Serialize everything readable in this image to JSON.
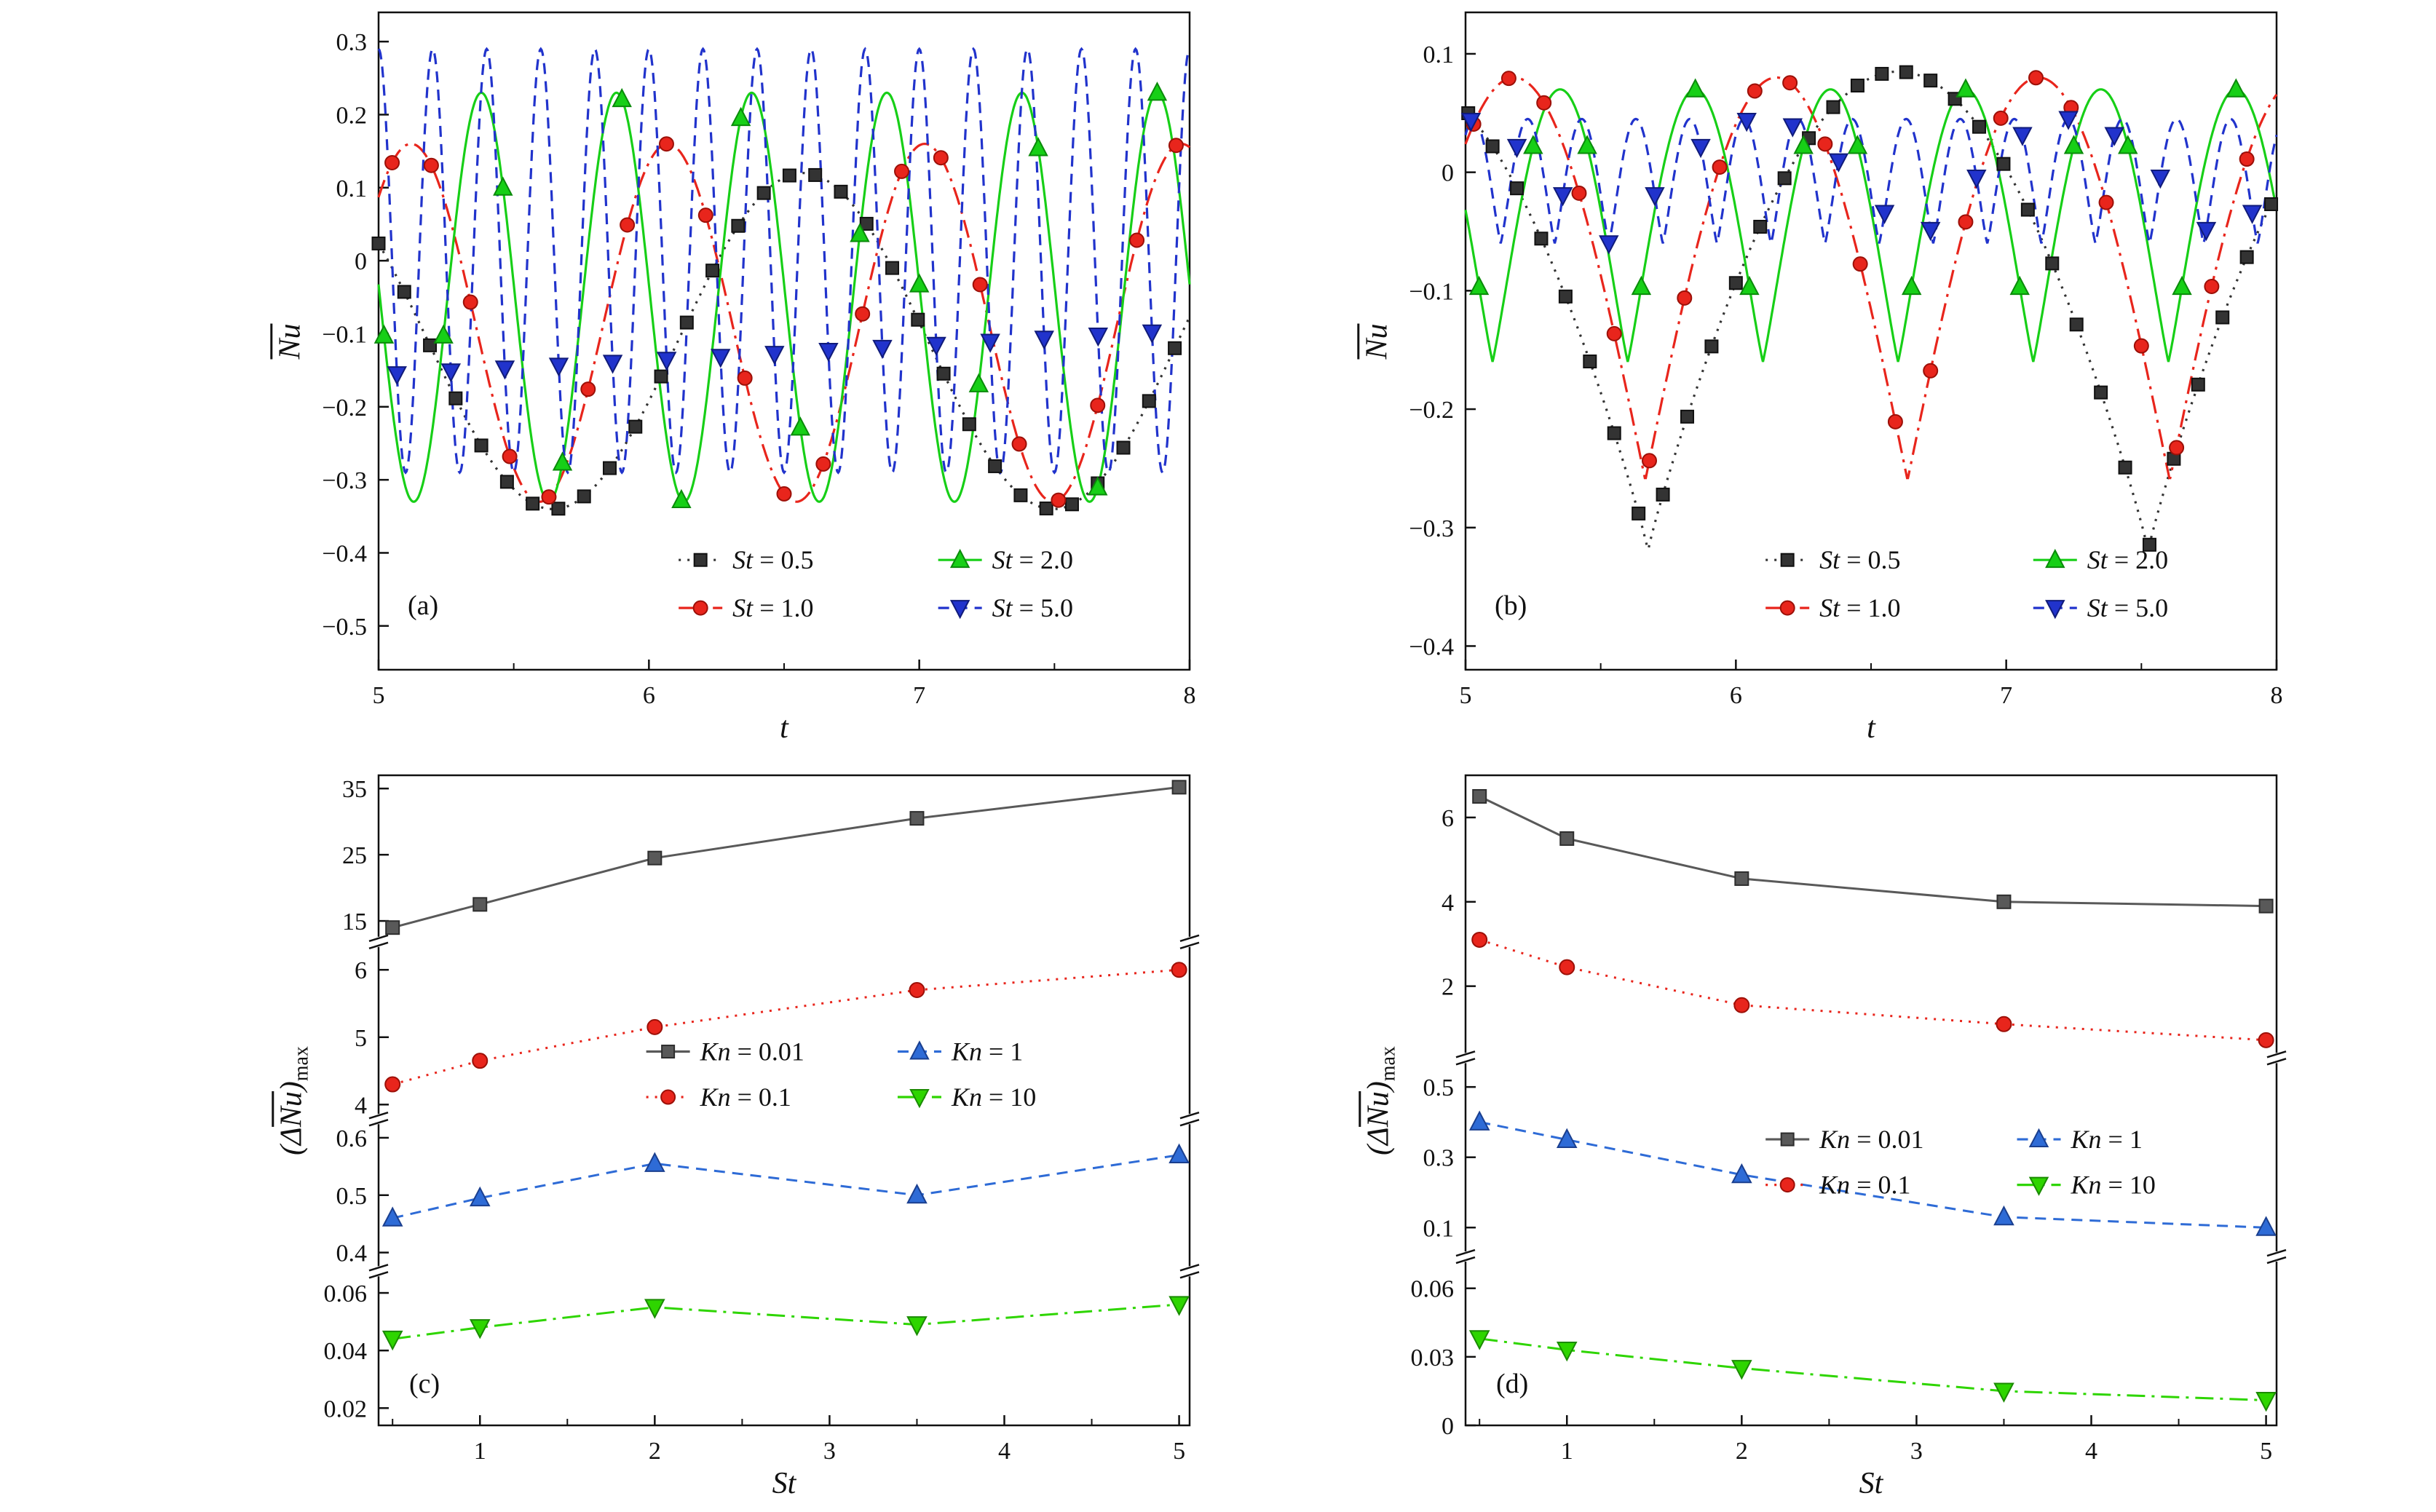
{
  "chart_data": {
    "type": "line",
    "description": "Four-panel figure of averaged Nusselt number oscillations and their maximum amplitude",
    "panels": {
      "a": {
        "type": "line",
        "letter": "(a)",
        "xlabel": "t",
        "ylabel": {
          "pre": "",
          "bar": "Nu",
          "post": "",
          "sub": ""
        },
        "xlim": [
          5,
          8
        ],
        "xticks": [
          5,
          6,
          7,
          8
        ],
        "xdec": 0,
        "ylim": [
          -0.56,
          0.34
        ],
        "yticks": [
          0.3,
          0.2,
          0.1,
          0,
          -0.1,
          -0.2,
          -0.3,
          -0.4,
          -0.5
        ],
        "ydec": 1,
        "series": [
          {
            "name": "St = 0.5",
            "color": "#333333",
            "edge": "#111111",
            "line": "dotted",
            "marker": "square",
            "center": -0.11,
            "amp": 0.23,
            "period": 1.85,
            "tmax": 4.72,
            "shape": 1,
            "marker_dt": 0.095,
            "marker_t0": 0.0
          },
          {
            "name": "St = 1.0",
            "color": "#e8251c",
            "edge": "#9c1008",
            "line": "dashdot",
            "marker": "circle",
            "center": -0.085,
            "amp": 0.245,
            "period": 0.95,
            "tmax": 5.12,
            "shape": 1,
            "marker_dt": 0.145,
            "marker_t0": 0.05
          },
          {
            "name": "St = 2.0",
            "color": "#17cf17",
            "edge": "#0a8a0a",
            "line": "solid",
            "marker": "triangle-up",
            "center": -0.05,
            "amp": 0.28,
            "period": 0.5,
            "tmax": 5.38,
            "shape": 1,
            "marker_dt": 0.22,
            "marker_t0": 0.02
          },
          {
            "name": "St = 5.0",
            "color": "#2133cc",
            "edge": "#101b7a",
            "line": "dashed",
            "marker": "triangle-down",
            "center": 0.0,
            "amp": 0.29,
            "period": 0.2,
            "tmax": 5.0,
            "shape": 1,
            "marker_dt": 0.1995,
            "marker_t0": 0.068
          }
        ]
      },
      "b": {
        "type": "line",
        "letter": "(b)",
        "xlabel": "t",
        "ylabel": {
          "pre": "",
          "bar": "Nu",
          "post": "",
          "sub": ""
        },
        "xlim": [
          5,
          8
        ],
        "xticks": [
          5,
          6,
          7,
          8
        ],
        "xdec": 0,
        "ylim": [
          -0.42,
          0.135
        ],
        "yticks": [
          0.1,
          0,
          -0.1,
          -0.2,
          -0.3,
          -0.4
        ],
        "ydec": 1,
        "series": [
          {
            "name": "St = 0.5",
            "color": "#333333",
            "edge": "#111111",
            "line": "dotted",
            "marker": "square",
            "center": -0.1175,
            "amp": 0.2025,
            "period": 1.85,
            "tmax": 6.6,
            "shape": 0.45,
            "marker_dt": 0.09,
            "marker_t0": 0.01
          },
          {
            "name": "St = 1.0",
            "color": "#e8251c",
            "edge": "#9c1008",
            "line": "dashdot",
            "marker": "circle",
            "center": -0.09,
            "amp": 0.17,
            "period": 0.97,
            "tmax": 6.15,
            "shape": 0.5,
            "marker_dt": 0.13,
            "marker_t0": 0.03
          },
          {
            "name": "St = 2.0",
            "color": "#17cf17",
            "edge": "#0a8a0a",
            "line": "solid",
            "marker": "triangle-up",
            "center": -0.045,
            "amp": 0.115,
            "period": 0.5,
            "tmax": 5.35,
            "shape": 0.55,
            "marker_dt": 0.2,
            "marker_t0": 0.05
          },
          {
            "name": "St = 5.0",
            "color": "#2133cc",
            "edge": "#101b7a",
            "line": "dashed",
            "marker": "triangle-down",
            "center": -0.0075,
            "amp": 0.0525,
            "period": 0.2,
            "tmax": 5.03,
            "shape": 0.6,
            "marker_dt": 0.17,
            "marker_t0": 0.02
          }
        ]
      },
      "c": {
        "type": "line-broken-axis",
        "letter": "(c)",
        "xlabel": "St",
        "ylabel": {
          "pre": "(Δ",
          "bar": "Nu",
          "post": ")",
          "sub": "max"
        },
        "xlim": [
          0.42,
          5.06
        ],
        "xticks": [
          1,
          2,
          3,
          4,
          5
        ],
        "xdec": 0,
        "x": [
          0.5,
          1,
          2,
          3.5,
          5
        ],
        "segments": [
          {
            "range": [
              12.5,
              37
            ],
            "ticks": [
              15,
              25,
              35
            ],
            "dec": 0,
            "frac": 0.26
          },
          {
            "range": [
              3.85,
              6.35
            ],
            "ticks": [
              4,
              5,
              6
            ],
            "dec": 0,
            "frac": 0.27
          },
          {
            "range": [
              0.375,
              0.625
            ],
            "ticks": [
              0.4,
              0.5,
              0.6
            ],
            "dec": 1,
            "frac": 0.23
          },
          {
            "range": [
              0.014,
              0.066
            ],
            "ticks": [
              0.02,
              0.04,
              0.06
            ],
            "dec": 2,
            "frac": 0.24
          }
        ],
        "series": [
          {
            "name": "Kn = 0.01",
            "color": "#595959",
            "edge": "#2e2e2e",
            "line": "solid",
            "marker": "square",
            "segment": 0,
            "y": [
              14,
              17.5,
              24.5,
              30.5,
              35.2
            ]
          },
          {
            "name": "Kn = 0.1",
            "color": "#e8251c",
            "edge": "#9c1008",
            "line": "dotted",
            "marker": "circle",
            "segment": 1,
            "y": [
              4.3,
              4.65,
              5.15,
              5.7,
              6.0
            ]
          },
          {
            "name": "Kn = 1",
            "color": "#2e6bd6",
            "edge": "#1a3f8f",
            "line": "dashed",
            "marker": "triangle-up",
            "segment": 2,
            "y": [
              0.46,
              0.495,
              0.555,
              0.5,
              0.57
            ]
          },
          {
            "name": "Kn = 10",
            "color": "#2ed500",
            "edge": "#1a8a00",
            "line": "dashdot",
            "marker": "triangle-down",
            "segment": 3,
            "y": [
              0.044,
              0.048,
              0.055,
              0.049,
              0.056
            ]
          }
        ]
      },
      "d": {
        "type": "line-broken-axis",
        "letter": "(d)",
        "xlabel": "St",
        "ylabel": {
          "pre": "(Δ",
          "bar": "Nu",
          "post": ")",
          "sub": "max"
        },
        "xlim": [
          0.42,
          5.06
        ],
        "xticks": [
          1,
          2,
          3,
          4,
          5
        ],
        "xdec": 0,
        "x": [
          0.5,
          1,
          2,
          3.5,
          5
        ],
        "segments": [
          {
            "range": [
              0.4,
              7.0
            ],
            "ticks": [
              2,
              4,
              6
            ],
            "dec": 0,
            "frac": 0.44
          },
          {
            "range": [
              0.03,
              0.57
            ],
            "ticks": [
              0.1,
              0.3,
              0.5
            ],
            "dec": 1,
            "frac": 0.3
          },
          {
            "range": [
              0,
              0.072
            ],
            "ticks": [
              0,
              0.03,
              0.06
            ],
            "dec": 2,
            "frac": 0.26
          }
        ],
        "series": [
          {
            "name": "Kn = 0.01",
            "color": "#595959",
            "edge": "#2e2e2e",
            "line": "solid",
            "marker": "square",
            "segment": 0,
            "y": [
              6.5,
              5.5,
              4.55,
              4.0,
              3.9
            ]
          },
          {
            "name": "Kn = 0.1",
            "color": "#e8251c",
            "edge": "#9c1008",
            "line": "dotted",
            "marker": "circle",
            "segment": 0,
            "y": [
              3.1,
              2.45,
              1.55,
              1.1,
              0.72
            ]
          },
          {
            "name": "Kn = 1",
            "color": "#2e6bd6",
            "edge": "#1a3f8f",
            "line": "dashed",
            "marker": "triangle-up",
            "segment": 1,
            "y": [
              0.4,
              0.35,
              0.25,
              0.13,
              0.1
            ]
          },
          {
            "name": "Kn = 10",
            "color": "#2ed500",
            "edge": "#1a8a00",
            "line": "dashdot",
            "marker": "triangle-down",
            "segment": 2,
            "y": [
              0.038,
              0.033,
              0.025,
              0.015,
              0.011
            ]
          }
        ]
      }
    }
  }
}
